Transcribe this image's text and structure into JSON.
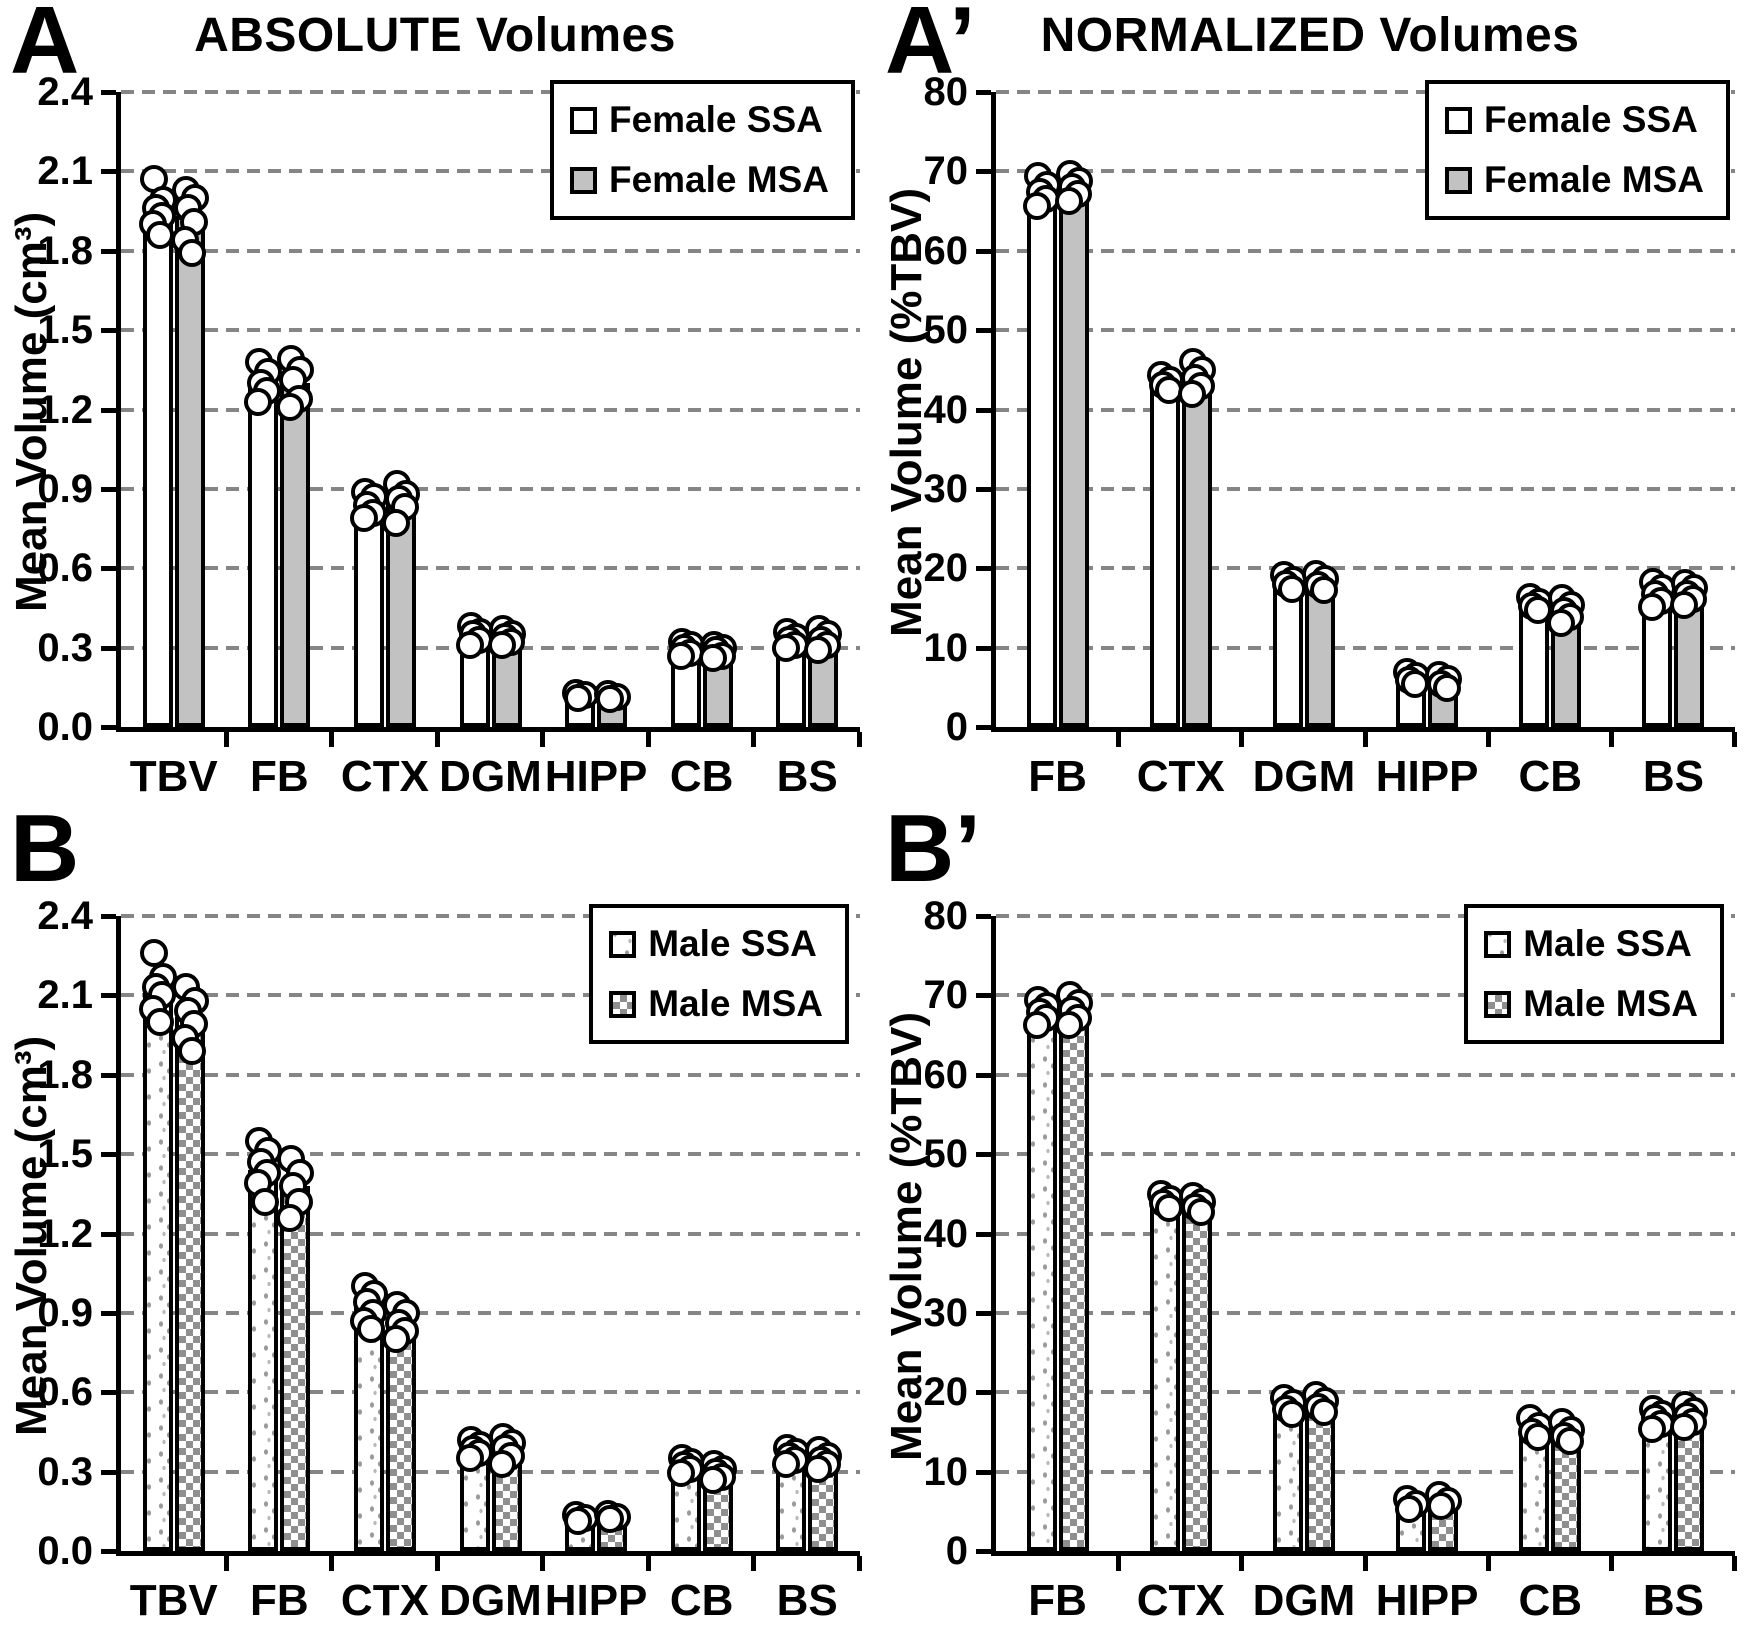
{
  "colors": {
    "axis": "#000000",
    "gridline": "#858585",
    "bar_gray_fill": "#c2c2c2",
    "pattern_gray": "#8f8f8f",
    "marker_fill": "#ffffff",
    "background": "#ffffff"
  },
  "panels": [
    {
      "letter": "A",
      "title": "ABSOLUTE Volumes",
      "ylabel": "Mean Volume (cm³)"
    },
    {
      "letter": "A’",
      "title": "NORMALIZED Volumes",
      "ylabel": "Mean Volume (%TBV)"
    },
    {
      "letter": "B",
      "title": "",
      "ylabel": "Mean Volume (cm³)"
    },
    {
      "letter": "B’",
      "title": "",
      "ylabel": "Mean Volume (%TBV)"
    }
  ],
  "chart_data": [
    {
      "type": "bar",
      "panel": "A",
      "title": "ABSOLUTE Volumes",
      "xlabel": "",
      "ylabel": "Mean Volume (cm³)",
      "ylim": [
        0,
        2.4
      ],
      "ytick_step": 0.3,
      "ytick_decimals": 1,
      "grid": "dashed-horizontal",
      "legend_position": "top-right",
      "categories": [
        "TBV",
        "FB",
        "CTX",
        "DGM",
        "HIPP",
        "CB",
        "BS"
      ],
      "series": [
        {
          "name": "Female SSA",
          "style": "white",
          "values": [
            1.95,
            1.31,
            0.84,
            0.35,
            0.12,
            0.3,
            0.33
          ],
          "points": [
            [
              2.07,
              1.99,
              1.96,
              1.93,
              1.9,
              1.86
            ],
            [
              1.38,
              1.34,
              1.3,
              1.27,
              1.23
            ],
            [
              0.89,
              0.87,
              0.84,
              0.81,
              0.79
            ],
            [
              0.38,
              0.36,
              0.35,
              0.33,
              0.31
            ],
            [
              0.13,
              0.12,
              0.11
            ],
            [
              0.32,
              0.31,
              0.3,
              0.28,
              0.27
            ],
            [
              0.36,
              0.34,
              0.33,
              0.31,
              0.3
            ]
          ]
        },
        {
          "name": "Female MSA",
          "style": "gray",
          "values": [
            1.93,
            1.3,
            0.85,
            0.34,
            0.115,
            0.29,
            0.325
          ],
          "points": [
            [
              2.03,
              2.0,
              1.96,
              1.91,
              1.84,
              1.79
            ],
            [
              1.39,
              1.35,
              1.31,
              1.24,
              1.21
            ],
            [
              0.92,
              0.88,
              0.86,
              0.83,
              0.77
            ],
            [
              0.37,
              0.35,
              0.34,
              0.32,
              0.31
            ],
            [
              0.125,
              0.115,
              0.105
            ],
            [
              0.31,
              0.3,
              0.29,
              0.27,
              0.26
            ],
            [
              0.37,
              0.35,
              0.33,
              0.31,
              0.29
            ]
          ]
        }
      ]
    },
    {
      "type": "bar",
      "panel": "A’",
      "title": "NORMALIZED Volumes",
      "xlabel": "",
      "ylabel": "Mean Volume (%TBV)",
      "ylim": [
        0,
        80
      ],
      "ytick_step": 10,
      "ytick_decimals": 0,
      "grid": "dashed-horizontal",
      "legend_position": "top-right",
      "categories": [
        "FB",
        "CTX",
        "DGM",
        "HIPP",
        "CB",
        "BS"
      ],
      "series": [
        {
          "name": "Female SSA",
          "style": "white",
          "values": [
            67.5,
            43.3,
            18.2,
            6.2,
            15.6,
            16.9
          ],
          "points": [
            [
              69.4,
              68.3,
              67.4,
              66.5,
              65.6
            ],
            [
              44.4,
              43.7,
              43.1,
              42.5
            ],
            [
              19.2,
              18.5,
              18.0,
              17.4
            ],
            [
              6.9,
              6.4,
              5.9,
              5.4
            ],
            [
              16.4,
              15.8,
              15.3,
              14.7
            ],
            [
              18.3,
              17.5,
              16.7,
              15.9,
              15.1
            ]
          ]
        },
        {
          "name": "Female MSA",
          "style": "gray",
          "values": [
            68.0,
            44.0,
            18.2,
            5.9,
            15.1,
            17.1
          ],
          "points": [
            [
              69.7,
              68.8,
              68.0,
              67.1,
              66.3
            ],
            [
              46.0,
              45.0,
              44.0,
              43.0,
              41.9
            ],
            [
              19.3,
              18.6,
              17.9,
              17.2
            ],
            [
              6.6,
              6.0,
              5.4,
              4.9
            ],
            [
              16.2,
              15.4,
              14.6,
              13.8,
              13.1
            ],
            [
              18.2,
              17.5,
              16.8,
              16.1,
              15.4
            ]
          ]
        }
      ]
    },
    {
      "type": "bar",
      "panel": "B",
      "title": "",
      "xlabel": "",
      "ylabel": "Mean Volume (cm³)",
      "ylim": [
        0,
        2.4
      ],
      "ytick_step": 0.3,
      "ytick_decimals": 1,
      "grid": "dashed-horizontal",
      "legend_position": "top-right",
      "categories": [
        "TBV",
        "FB",
        "CTX",
        "DGM",
        "HIPP",
        "CB",
        "BS"
      ],
      "series": [
        {
          "name": "Male SSA",
          "style": "speckle",
          "values": [
            2.12,
            1.44,
            0.93,
            0.385,
            0.125,
            0.325,
            0.36
          ],
          "points": [
            [
              2.26,
              2.17,
              2.13,
              2.1,
              2.05,
              2.0
            ],
            [
              1.55,
              1.51,
              1.47,
              1.43,
              1.39,
              1.32
            ],
            [
              1.0,
              0.97,
              0.94,
              0.9,
              0.87,
              0.84
            ],
            [
              0.42,
              0.4,
              0.385,
              0.37,
              0.35
            ],
            [
              0.135,
              0.125,
              0.115
            ],
            [
              0.35,
              0.335,
              0.325,
              0.31,
              0.295
            ],
            [
              0.39,
              0.375,
              0.36,
              0.345,
              0.33
            ]
          ]
        },
        {
          "name": "Male MSA",
          "style": "checker",
          "values": [
            2.02,
            1.38,
            0.88,
            0.375,
            0.13,
            0.305,
            0.345
          ],
          "points": [
            [
              2.13,
              2.08,
              2.04,
              1.99,
              1.94,
              1.89
            ],
            [
              1.48,
              1.43,
              1.38,
              1.32,
              1.26
            ],
            [
              0.93,
              0.9,
              0.86,
              0.83,
              0.8
            ],
            [
              0.43,
              0.41,
              0.39,
              0.36,
              0.33
            ],
            [
              0.14,
              0.13,
              0.12
            ],
            [
              0.33,
              0.31,
              0.3,
              0.28,
              0.27
            ],
            [
              0.38,
              0.36,
              0.345,
              0.33,
              0.31
            ]
          ]
        }
      ]
    },
    {
      "type": "bar",
      "panel": "B’",
      "title": "",
      "xlabel": "",
      "ylabel": "Mean Volume (%TBV)",
      "ylim": [
        0,
        80
      ],
      "ytick_step": 10,
      "ytick_decimals": 0,
      "grid": "dashed-horizontal",
      "legend_position": "top-right",
      "categories": [
        "FB",
        "CTX",
        "DGM",
        "HIPP",
        "CB",
        "BS"
      ],
      "series": [
        {
          "name": "Male SSA",
          "style": "speckle",
          "values": [
            68.0,
            44.0,
            18.2,
            5.9,
            15.3,
            17.0
          ],
          "points": [
            [
              69.4,
              68.6,
              67.9,
              67.1,
              66.3
            ],
            [
              45.0,
              44.4,
              43.8,
              43.2
            ],
            [
              19.3,
              18.6,
              17.9,
              17.2
            ],
            [
              6.5,
              5.9,
              5.3
            ],
            [
              16.7,
              15.8,
              15.0,
              14.3
            ],
            [
              17.9,
              17.3,
              16.7,
              16.0,
              15.4
            ]
          ]
        },
        {
          "name": "Male MSA",
          "style": "checker",
          "values": [
            68.0,
            43.5,
            18.6,
            6.2,
            14.9,
            17.0
          ],
          "points": [
            [
              70.0,
              69.0,
              68.1,
              67.2,
              66.3
            ],
            [
              44.7,
              44.0,
              43.3,
              42.7
            ],
            [
              19.6,
              18.9,
              18.2,
              17.5
            ],
            [
              7.0,
              6.3,
              5.7
            ],
            [
              16.2,
              15.3,
              14.5,
              13.8
            ],
            [
              18.4,
              17.7,
              17.0,
              16.3,
              15.6
            ]
          ]
        }
      ]
    }
  ]
}
